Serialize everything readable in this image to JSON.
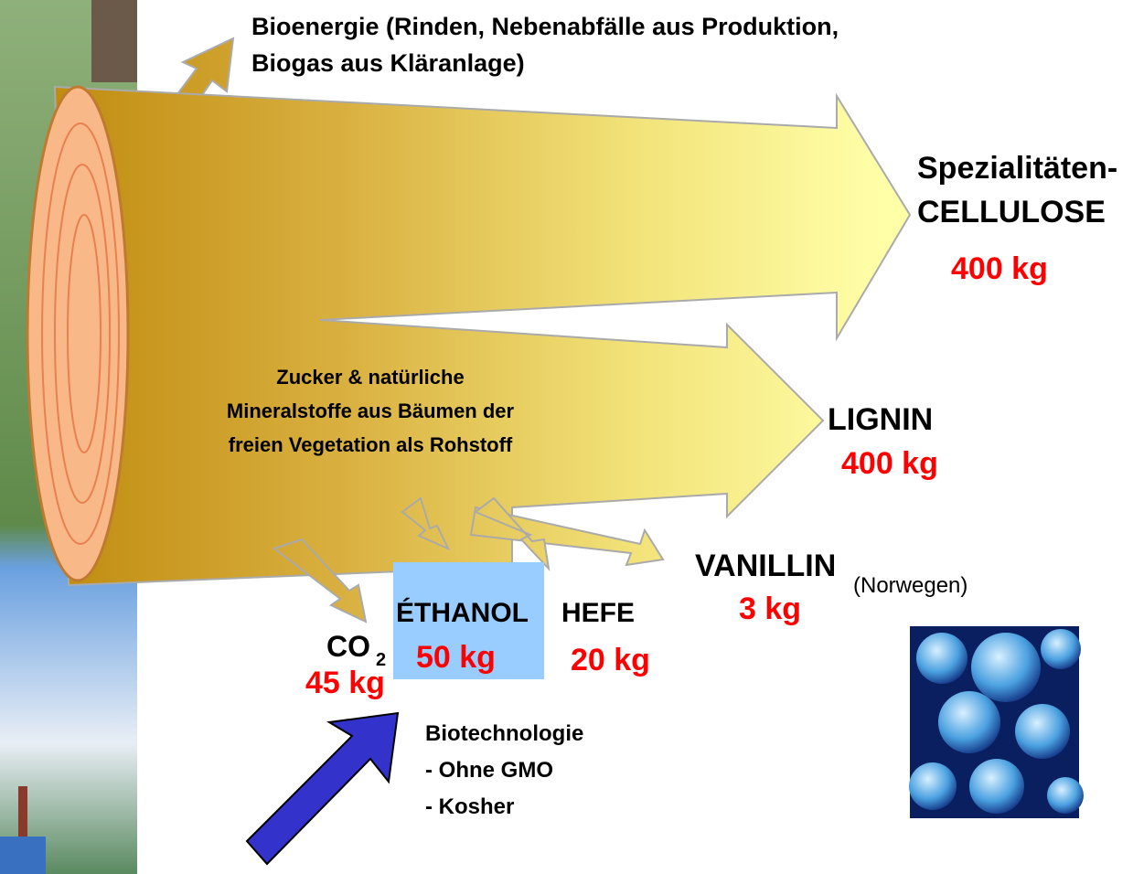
{
  "header": {
    "title": [
      "Bioenergie (Rinden, Nebenabfälle aus Produktion,",
      "Biogas aus Kläranlage)"
    ]
  },
  "center_label": [
    "Zucker & natürliche",
    "Mineralstoffe aus Bäumen der",
    "freien Vegetation als Rohstoff"
  ],
  "outputs": [
    {
      "label": [
        "Spezialitäten-",
        "CELLULOSE"
      ],
      "amount": "400 kg"
    },
    {
      "label": [
        "LIGNIN"
      ],
      "amount": "400 kg"
    },
    {
      "label": [
        "VANILLIN"
      ],
      "note": "(Norwegen)",
      "amount": "3 kg"
    },
    {
      "label": [
        "HEFE"
      ],
      "amount": "20 kg"
    },
    {
      "label": [
        "ÉTHANOL"
      ],
      "amount": "50 kg"
    },
    {
      "label": [
        "CO"
      ],
      "subscript": "2",
      "amount": "45 kg"
    }
  ],
  "biotech": {
    "title": "Biotechnologie",
    "items": [
      "- Ohne GMO",
      "- Kosher"
    ]
  }
}
